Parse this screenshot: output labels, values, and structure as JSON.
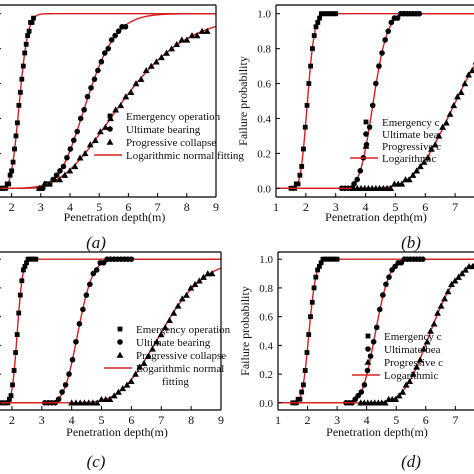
{
  "chart_data": [
    {
      "type": "scatter",
      "panel_label": "(a)",
      "xlabel": "Penetration depth(m)",
      "ylabel": "",
      "xlim": [
        1.5,
        9
      ],
      "ylim": [
        -0.05,
        1.05
      ],
      "x_ticks": [
        2,
        3,
        4,
        5,
        6,
        7,
        8,
        9
      ],
      "y_ticks": [],
      "legend": {
        "placement": "bottom-right",
        "entries": [
          "Emergency operation",
          "Ultimate bearing",
          "Progressive collapse",
          "Logarithmic normal fitting"
        ]
      },
      "series": [
        {
          "name": "Emergency operation",
          "marker": "square",
          "mu": 0.82,
          "sigma": 0.1,
          "x_range": [
            1.5,
            2.75
          ]
        },
        {
          "name": "Ultimate bearing",
          "marker": "circle",
          "mu": 1.52,
          "sigma": 0.17,
          "x_range": [
            2.95,
            5.9
          ]
        },
        {
          "name": "Progressive collapse",
          "marker": "triangle",
          "mu": 1.76,
          "sigma": 0.3,
          "x_range": [
            2.95,
            8.7
          ]
        }
      ]
    },
    {
      "type": "scatter",
      "panel_label": "(b)",
      "xlabel": "Penetration depth(m)",
      "ylabel": "Failure probability",
      "xlim": [
        1,
        7.7
      ],
      "ylim": [
        -0.05,
        1.05
      ],
      "x_ticks": [
        1,
        2,
        3,
        4,
        5,
        6,
        7
      ],
      "y_ticks": [
        0.0,
        0.2,
        0.4,
        0.6,
        0.8,
        1.0
      ],
      "legend": {
        "placement": "bottom-right",
        "entries": [
          "Emergency c",
          "Ultimate bea",
          "Progressive c",
          "Logarithmic"
        ]
      },
      "series": [
        {
          "name": "Emergency operation",
          "marker": "square",
          "mu": 0.72,
          "sigma": 0.09,
          "x_range": [
            1.5,
            3.0
          ]
        },
        {
          "name": "Ultimate bearing",
          "marker": "circle",
          "mu": 1.45,
          "sigma": 0.085,
          "x_range": [
            3.2,
            5.8
          ]
        },
        {
          "name": "Progressive collapse",
          "marker": "triangle",
          "mu": 1.95,
          "sigma": 0.16,
          "x_range": [
            3.6,
            7.7
          ]
        }
      ]
    },
    {
      "type": "scatter",
      "panel_label": "(c)",
      "xlabel": "Penetration depth(m)",
      "ylabel": "",
      "xlim": [
        1.5,
        9
      ],
      "ylim": [
        -0.05,
        1.05
      ],
      "x_ticks": [
        2,
        3,
        4,
        5,
        6,
        7,
        8,
        9
      ],
      "y_ticks": [],
      "legend": {
        "placement": "bottom-right",
        "entries": [
          "Emergency operation",
          "Ultimate bearing",
          "Progressive collapse",
          "Logarithmic normal",
          "fitting"
        ]
      },
      "series": [
        {
          "name": "Emergency operation",
          "marker": "square",
          "mu": 0.78,
          "sigma": 0.065,
          "x_range": [
            1.5,
            2.8
          ]
        },
        {
          "name": "Ultimate bearing",
          "marker": "circle",
          "mu": 1.44,
          "sigma": 0.09,
          "x_range": [
            3.1,
            6.0
          ]
        },
        {
          "name": "Progressive collapse",
          "marker": "triangle",
          "mu": 1.95,
          "sigma": 0.16,
          "x_range": [
            4.0,
            8.7
          ]
        }
      ]
    },
    {
      "type": "scatter",
      "panel_label": "(d)",
      "xlabel": "Penetration depth(m)",
      "ylabel": "Failure probability",
      "xlim": [
        1,
        7.7
      ],
      "ylim": [
        -0.05,
        1.05
      ],
      "x_ticks": [
        1,
        2,
        3,
        4,
        5,
        6,
        7
      ],
      "y_ticks": [
        0.0,
        0.2,
        0.4,
        0.6,
        0.8,
        1.0
      ],
      "legend": {
        "placement": "bottom-right",
        "entries": [
          "Emergency c",
          "Ultimate bea",
          "Progressive c",
          "Logarithmic"
        ]
      },
      "series": [
        {
          "name": "Emergency operation",
          "marker": "square",
          "mu": 0.72,
          "sigma": 0.09,
          "x_range": [
            1.5,
            3.0
          ]
        },
        {
          "name": "Ultimate bearing",
          "marker": "circle",
          "mu": 1.46,
          "sigma": 0.085,
          "x_range": [
            3.3,
            5.9
          ]
        },
        {
          "name": "Progressive collapse",
          "marker": "triangle",
          "mu": 1.82,
          "sigma": 0.12,
          "x_range": [
            3.8,
            7.7
          ]
        }
      ]
    }
  ],
  "colors": {
    "fit_line": "#d62020",
    "markers": "#000000"
  }
}
